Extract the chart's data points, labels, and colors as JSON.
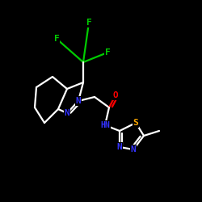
{
  "background_color": "#000000",
  "bond_color": "#ffffff",
  "atom_colors": {
    "F": "#00cc00",
    "N": "#3333ff",
    "O": "#ff0000",
    "S": "#ffaa00",
    "C": "#ffffff"
  },
  "figsize": [
    2.5,
    2.5
  ],
  "dpi": 100
}
